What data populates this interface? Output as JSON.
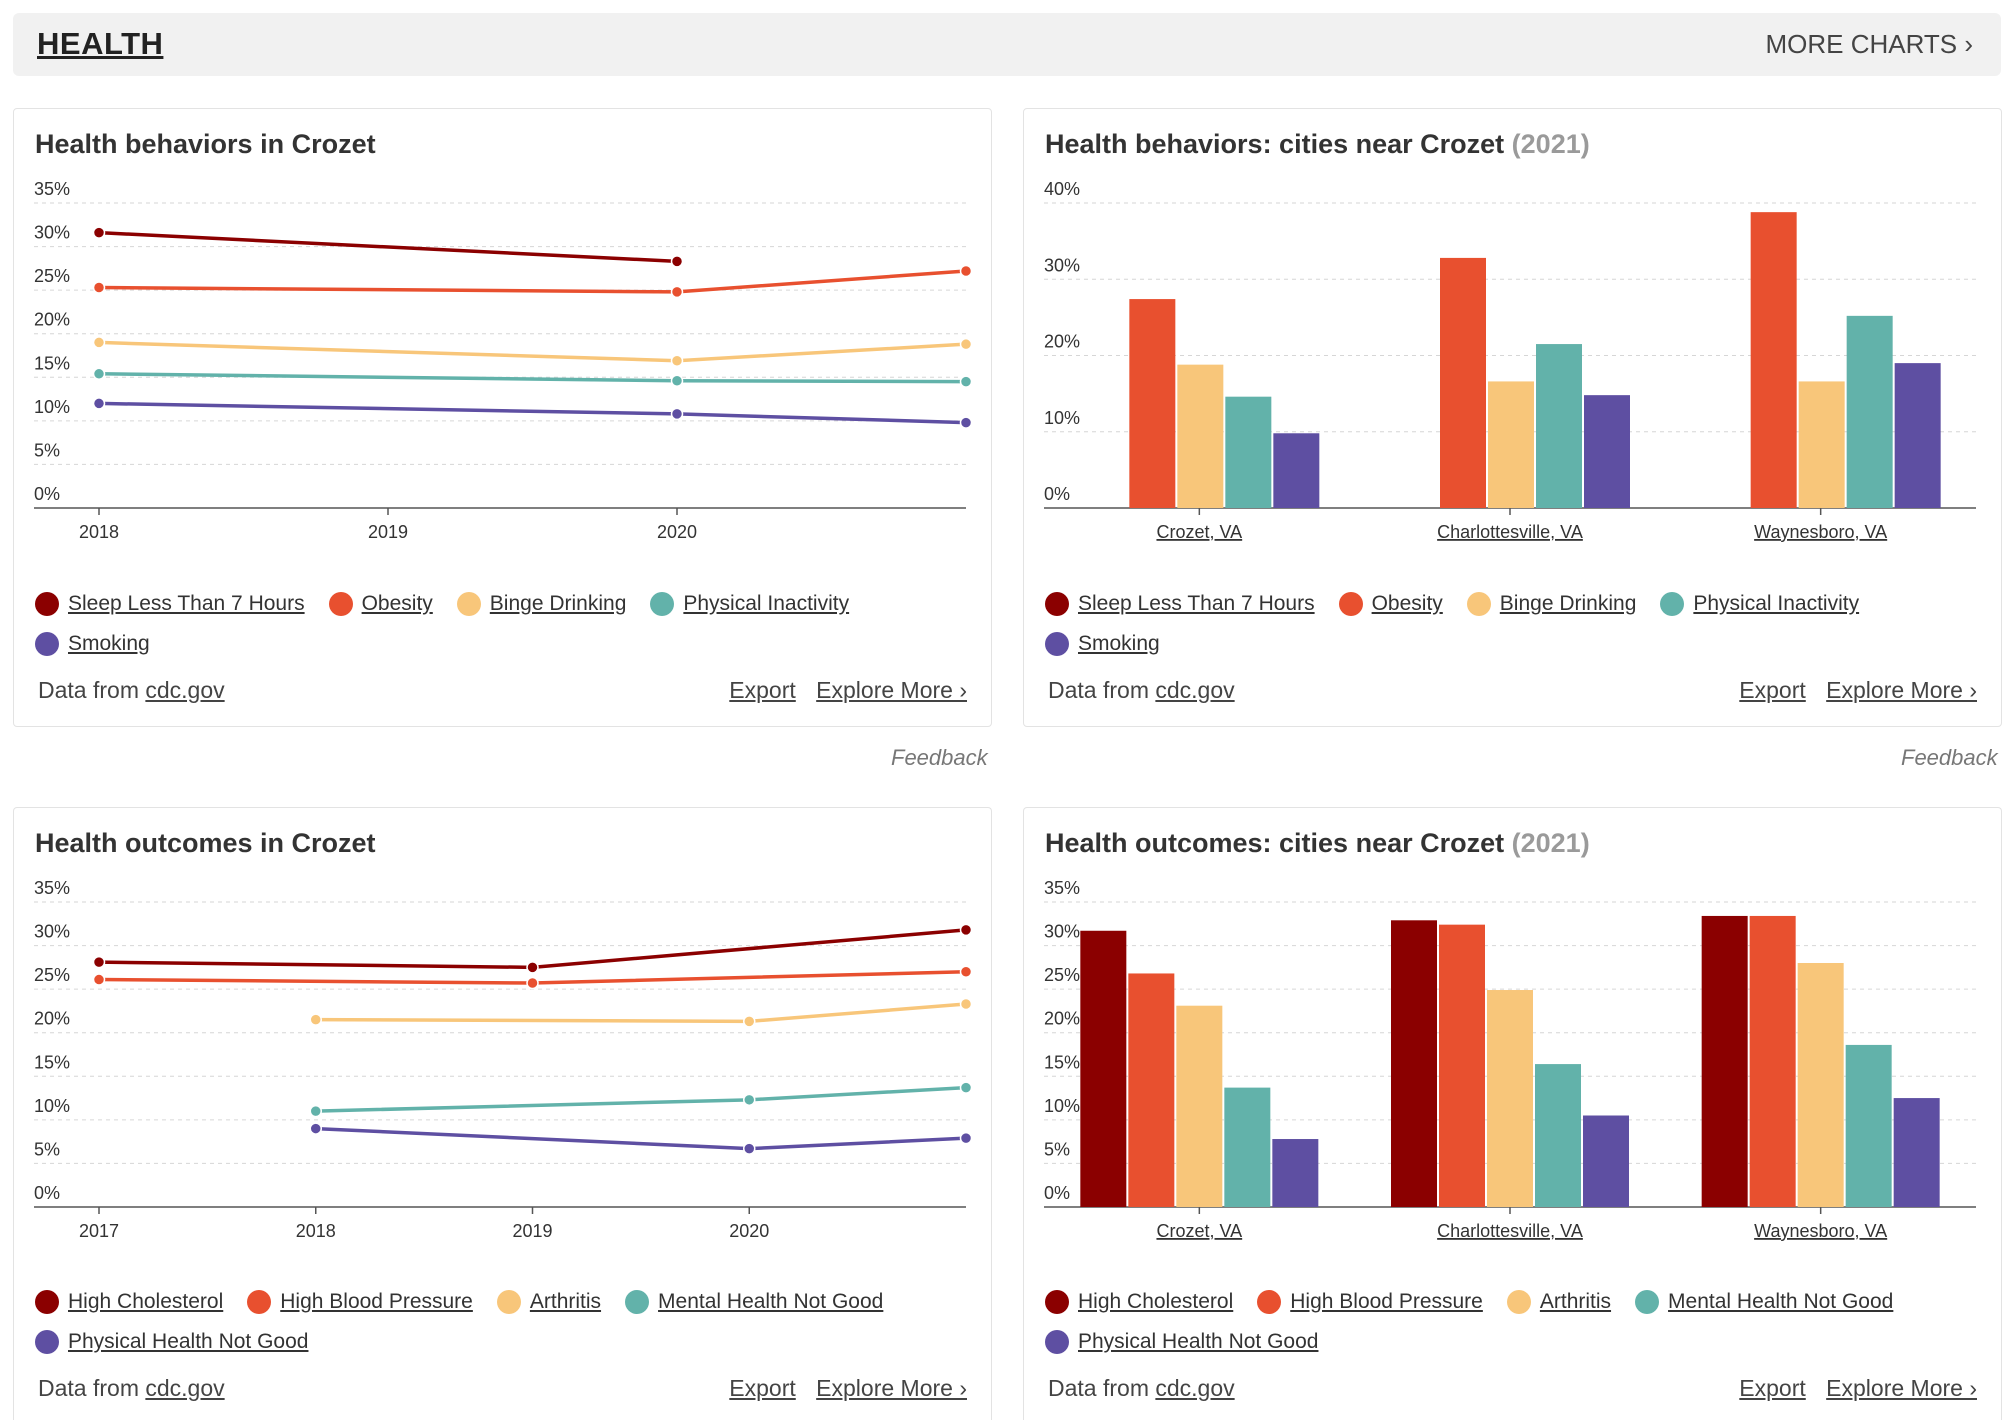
{
  "section": {
    "title": "HEALTH",
    "more_charts": "MORE CHARTS ›"
  },
  "feedback_label": "Feedback",
  "cards": [
    {
      "title": "Health behaviors in Crozet",
      "year_label": "",
      "legend": [
        {
          "label": "Sleep Less Than 7 Hours",
          "color": "#8b0000"
        },
        {
          "label": "Obesity",
          "color": "#e8502f"
        },
        {
          "label": "Binge Drinking",
          "color": "#f8c67a"
        },
        {
          "label": "Physical Inactivity",
          "color": "#62b2aa"
        },
        {
          "label": "Smoking",
          "color": "#5e4fa2"
        }
      ],
      "footer": {
        "source_prefix": "Data from ",
        "source_link": "cdc.gov",
        "export": "Export",
        "explore": "Explore More ›"
      }
    },
    {
      "title": "Health behaviors: cities near Crozet",
      "year_label": "(2021)",
      "legend": [
        {
          "label": "Sleep Less Than 7 Hours",
          "color": "#8b0000"
        },
        {
          "label": "Obesity",
          "color": "#e8502f"
        },
        {
          "label": "Binge Drinking",
          "color": "#f8c67a"
        },
        {
          "label": "Physical Inactivity",
          "color": "#62b2aa"
        },
        {
          "label": "Smoking",
          "color": "#5e4fa2"
        }
      ],
      "footer": {
        "source_prefix": "Data from ",
        "source_link": "cdc.gov",
        "export": "Export",
        "explore": "Explore More ›"
      }
    },
    {
      "title": "Health outcomes in Crozet",
      "year_label": "",
      "legend": [
        {
          "label": "High Cholesterol",
          "color": "#8b0000"
        },
        {
          "label": "High Blood Pressure",
          "color": "#e8502f"
        },
        {
          "label": "Arthritis",
          "color": "#f8c67a"
        },
        {
          "label": "Mental Health Not Good",
          "color": "#62b2aa"
        },
        {
          "label": "Physical Health Not Good",
          "color": "#5e4fa2"
        }
      ],
      "footer": {
        "source_prefix": "Data from ",
        "source_link": "cdc.gov",
        "export": "Export",
        "explore": "Explore More ›"
      }
    },
    {
      "title": "Health outcomes: cities near Crozet",
      "year_label": "(2021)",
      "legend": [
        {
          "label": "High Cholesterol",
          "color": "#8b0000"
        },
        {
          "label": "High Blood Pressure",
          "color": "#e8502f"
        },
        {
          "label": "Arthritis",
          "color": "#f8c67a"
        },
        {
          "label": "Mental Health Not Good",
          "color": "#62b2aa"
        },
        {
          "label": "Physical Health Not Good",
          "color": "#5e4fa2"
        }
      ],
      "footer": {
        "source_prefix": "Data from ",
        "source_link": "cdc.gov",
        "export": "Export",
        "explore": "Explore More ›"
      }
    }
  ],
  "chart_data": [
    {
      "type": "line",
      "title": "Health behaviors in Crozet",
      "ylim": [
        0,
        35
      ],
      "yticks": [
        "0%",
        "5%",
        "10%",
        "15%",
        "20%",
        "25%",
        "30%",
        "35%"
      ],
      "xticks": [
        "2018",
        "2019",
        "2020"
      ],
      "xlim": [
        2018,
        2021
      ],
      "grid": true,
      "series": [
        {
          "name": "Sleep Less Than 7 Hours",
          "color": "#8b0000",
          "x": [
            2018,
            2020
          ],
          "y": [
            31.6,
            28.3
          ]
        },
        {
          "name": "Obesity",
          "color": "#e8502f",
          "x": [
            2018,
            2020,
            2021
          ],
          "y": [
            25.3,
            24.8,
            27.2
          ]
        },
        {
          "name": "Binge Drinking",
          "color": "#f8c67a",
          "x": [
            2018,
            2020,
            2021
          ],
          "y": [
            19.0,
            16.9,
            18.8
          ]
        },
        {
          "name": "Physical Inactivity",
          "color": "#62b2aa",
          "x": [
            2018,
            2020,
            2021
          ],
          "y": [
            15.4,
            14.6,
            14.5
          ]
        },
        {
          "name": "Smoking",
          "color": "#5e4fa2",
          "x": [
            2018,
            2020,
            2021
          ],
          "y": [
            12.0,
            10.8,
            9.8
          ]
        }
      ]
    },
    {
      "type": "bar",
      "title": "Health behaviors: cities near Crozet (2021)",
      "ylim": [
        0,
        40
      ],
      "yticks": [
        "0%",
        "10%",
        "20%",
        "30%",
        "40%"
      ],
      "categories": [
        "Crozet, VA",
        "Charlottesville, VA",
        "Waynesboro, VA"
      ],
      "grid": true,
      "series": [
        {
          "name": "Obesity",
          "color": "#e8502f",
          "values": [
            27.4,
            32.8,
            38.8
          ]
        },
        {
          "name": "Binge Drinking",
          "color": "#f8c67a",
          "values": [
            18.8,
            16.6,
            16.6
          ]
        },
        {
          "name": "Physical Inactivity",
          "color": "#62b2aa",
          "values": [
            14.6,
            21.5,
            25.2
          ]
        },
        {
          "name": "Smoking",
          "color": "#5e4fa2",
          "values": [
            9.8,
            14.8,
            19.0
          ]
        }
      ]
    },
    {
      "type": "line",
      "title": "Health outcomes in Crozet",
      "ylim": [
        0,
        35
      ],
      "yticks": [
        "0%",
        "5%",
        "10%",
        "15%",
        "20%",
        "25%",
        "30%",
        "35%"
      ],
      "xticks": [
        "2017",
        "2018",
        "2019",
        "2020"
      ],
      "xlim": [
        2017,
        2021
      ],
      "grid": true,
      "series": [
        {
          "name": "High Cholesterol",
          "color": "#8b0000",
          "x": [
            2017,
            2019,
            2021
          ],
          "y": [
            28.1,
            27.5,
            31.8
          ]
        },
        {
          "name": "High Blood Pressure",
          "color": "#e8502f",
          "x": [
            2017,
            2019,
            2021
          ],
          "y": [
            26.1,
            25.7,
            27.0
          ]
        },
        {
          "name": "Arthritis",
          "color": "#f8c67a",
          "x": [
            2018,
            2020,
            2021
          ],
          "y": [
            21.5,
            21.3,
            23.3
          ]
        },
        {
          "name": "Mental Health Not Good",
          "color": "#62b2aa",
          "x": [
            2018,
            2020,
            2021
          ],
          "y": [
            11.0,
            12.3,
            13.7
          ]
        },
        {
          "name": "Physical Health Not Good",
          "color": "#5e4fa2",
          "x": [
            2018,
            2020,
            2021
          ],
          "y": [
            9.0,
            6.7,
            7.9
          ]
        }
      ]
    },
    {
      "type": "bar",
      "title": "Health outcomes: cities near Crozet (2021)",
      "ylim": [
        0,
        35
      ],
      "yticks": [
        "0%",
        "5%",
        "10%",
        "15%",
        "20%",
        "25%",
        "30%",
        "35%"
      ],
      "categories": [
        "Crozet, VA",
        "Charlottesville, VA",
        "Waynesboro, VA"
      ],
      "grid": true,
      "series": [
        {
          "name": "High Cholesterol",
          "color": "#8b0000",
          "values": [
            31.7,
            32.9,
            33.4
          ]
        },
        {
          "name": "High Blood Pressure",
          "color": "#e8502f",
          "values": [
            26.8,
            32.4,
            33.4
          ]
        },
        {
          "name": "Arthritis",
          "color": "#f8c67a",
          "values": [
            23.1,
            24.9,
            28.0
          ]
        },
        {
          "name": "Mental Health Not Good",
          "color": "#62b2aa",
          "values": [
            13.7,
            16.4,
            18.6
          ]
        },
        {
          "name": "Physical Health Not Good",
          "color": "#5e4fa2",
          "values": [
            7.8,
            10.5,
            12.5
          ]
        }
      ]
    }
  ]
}
